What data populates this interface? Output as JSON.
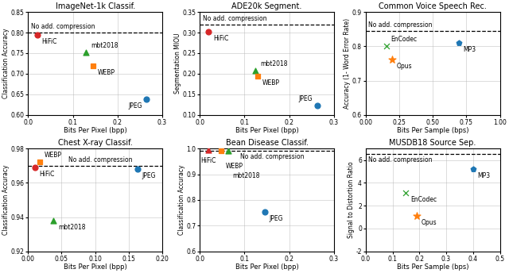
{
  "chart_data": [
    {
      "type": "scatter",
      "title": "ImageNet-1k Classif.",
      "x_label": "Bits Per Pixel (bpp)",
      "y_label": "Classification Accuracy",
      "xlim": [
        0,
        0.3
      ],
      "ylim": [
        0.6,
        0.85
      ],
      "xticks": [
        0.0,
        0.1,
        0.2,
        0.3
      ],
      "yticks": [
        {
          "value": 0.6,
          "label": "0.60"
        },
        {
          "value": 0.65,
          "label": "0.65"
        },
        {
          "value": 0.7,
          "label": "0.70"
        },
        {
          "value": 0.75,
          "label": "0.75"
        },
        {
          "value": 0.8,
          "label": "0.80"
        },
        {
          "value": 0.85,
          "label": "0.85"
        }
      ],
      "grid": true,
      "reference_line": {
        "value": 0.8,
        "label": "No add. compression",
        "line_style": "dashed"
      },
      "series": [
        {
          "name": "HiFiC",
          "color": "#d62728",
          "marker": "circle",
          "x": [
            0.02
          ],
          "values": [
            0.795
          ]
        },
        {
          "name": "mbt2018",
          "color": "#2ca02c",
          "marker": "triangle",
          "x": [
            0.13
          ],
          "values": [
            0.752
          ]
        },
        {
          "name": "WEBP",
          "color": "#ff7f0e",
          "marker": "square",
          "x": [
            0.145
          ],
          "values": [
            0.72
          ]
        },
        {
          "name": "JPEG",
          "color": "#1f77b4",
          "marker": "circle",
          "x": [
            0.265
          ],
          "values": [
            0.638
          ]
        }
      ]
    },
    {
      "type": "scatter",
      "title": "ADE20k Segment.",
      "x_label": "Bits Per Pixel (bpp)",
      "y_label": "Segmentation MIOU",
      "xlim": [
        0,
        0.3
      ],
      "ylim": [
        0.1,
        0.35
      ],
      "xticks": [
        0.0,
        0.1,
        0.2,
        0.3
      ],
      "yticks": [
        {
          "value": 0.1,
          "label": "0.10"
        },
        {
          "value": 0.15,
          "label": "0.15"
        },
        {
          "value": 0.2,
          "label": "0.20"
        },
        {
          "value": 0.25,
          "label": "0.25"
        },
        {
          "value": 0.3,
          "label": "0.30"
        },
        {
          "value": 0.35,
          "label": "0.35"
        }
      ],
      "grid": true,
      "reference_line": {
        "value": 0.32,
        "label": "No add. compression",
        "line_style": "dashed"
      },
      "series": [
        {
          "name": "HiFiC",
          "color": "#d62728",
          "marker": "circle",
          "x": [
            0.02
          ],
          "values": [
            0.302
          ]
        },
        {
          "name": "mbt2018",
          "color": "#2ca02c",
          "marker": "triangle",
          "x": [
            0.125
          ],
          "values": [
            0.208
          ]
        },
        {
          "name": "WEBP",
          "color": "#ff7f0e",
          "marker": "square",
          "x": [
            0.13
          ],
          "values": [
            0.194
          ]
        },
        {
          "name": "JPEG",
          "color": "#1f77b4",
          "marker": "circle",
          "x": [
            0.262
          ],
          "values": [
            0.122
          ]
        }
      ]
    },
    {
      "type": "scatter",
      "title": "Common Voice Speech Rec.",
      "x_label": "Bits Per Sample (bps)",
      "y_label": "Accuracy (1- Word Error Rate)",
      "xlim": [
        0,
        1.0
      ],
      "ylim": [
        0.6,
        0.9
      ],
      "xticks": [
        {
          "value": 0.0,
          "label": "0.00"
        },
        {
          "value": 0.25,
          "label": "0.25"
        },
        {
          "value": 0.5,
          "label": "0.50"
        },
        {
          "value": 0.75,
          "label": "0.75"
        },
        {
          "value": 1.0,
          "label": "1.00"
        }
      ],
      "yticks": [
        0.6,
        0.7,
        0.8,
        0.9
      ],
      "grid": true,
      "reference_line": {
        "value": 0.845,
        "label": "No add. compression",
        "line_style": "dashed"
      },
      "series": [
        {
          "name": "EnCodec",
          "color": "#2ca02c",
          "marker": "x",
          "x": [
            0.155
          ],
          "values": [
            0.8
          ]
        },
        {
          "name": "Opus",
          "color": "#ff7f0e",
          "marker": "star",
          "x": [
            0.195
          ],
          "values": [
            0.762
          ]
        },
        {
          "name": "MP3",
          "color": "#1f77b4",
          "marker": "pentagon",
          "x": [
            0.695
          ],
          "values": [
            0.81
          ]
        }
      ]
    },
    {
      "type": "scatter",
      "title": "Chest X-ray Classif.",
      "x_label": "Bits Per Pixel (bpp)",
      "y_label": "Classification Accuracy",
      "xlim": [
        0,
        0.2
      ],
      "ylim": [
        0.92,
        0.98
      ],
      "xticks": [
        {
          "value": 0.0,
          "label": "0.00"
        },
        {
          "value": 0.05,
          "label": "0.05"
        },
        {
          "value": 0.1,
          "label": "0.10"
        },
        {
          "value": 0.15,
          "label": "0.15"
        },
        {
          "value": 0.2,
          "label": "0.20"
        }
      ],
      "yticks": [
        0.92,
        0.94,
        0.96,
        0.98
      ],
      "grid": true,
      "reference_line": {
        "value": 0.97,
        "label": "No add. compression",
        "line_style": "dashed"
      },
      "series": [
        {
          "name": "HiFiC",
          "color": "#d62728",
          "marker": "circle",
          "x": [
            0.01
          ],
          "values": [
            0.969
          ]
        },
        {
          "name": "WEBP",
          "color": "#ff7f0e",
          "marker": "square",
          "x": [
            0.018
          ],
          "values": [
            0.972
          ]
        },
        {
          "name": "mbt2018",
          "color": "#2ca02c",
          "marker": "triangle",
          "x": [
            0.038
          ],
          "values": [
            0.938
          ]
        },
        {
          "name": "JPEG",
          "color": "#1f77b4",
          "marker": "circle",
          "x": [
            0.163
          ],
          "values": [
            0.968
          ]
        }
      ]
    },
    {
      "type": "scatter",
      "title": "Bean Disease Classif.",
      "x_label": "Bits Per Pixel (bpp)",
      "y_label": "Classification Accuracy",
      "xlim": [
        0,
        0.3
      ],
      "ylim": [
        0.6,
        1.0
      ],
      "xticks": [
        0.0,
        0.1,
        0.2,
        0.3
      ],
      "yticks": [
        0.6,
        0.7,
        0.8,
        0.9,
        1.0
      ],
      "grid": true,
      "reference_line": {
        "value": 0.99,
        "label": "No add. compression",
        "line_style": "dashed"
      },
      "series": [
        {
          "name": "HiFiC",
          "color": "#d62728",
          "marker": "triangle",
          "x": [
            0.02
          ],
          "values": [
            0.993
          ]
        },
        {
          "name": "WEBP",
          "color": "#ff7f0e",
          "marker": "square",
          "x": [
            0.048
          ],
          "values": [
            0.992
          ]
        },
        {
          "name": "mbt2018",
          "color": "#2ca02c",
          "marker": "triangle",
          "x": [
            0.063
          ],
          "values": [
            0.99
          ]
        },
        {
          "name": "JPEG",
          "color": "#1f77b4",
          "marker": "circle",
          "x": [
            0.145
          ],
          "values": [
            0.755
          ]
        }
      ]
    },
    {
      "type": "scatter",
      "title": "MUSDB18 Source Sep.",
      "x_label": "Bits Per Sample (bps)",
      "y_label": "Signal to Distortion Ratio",
      "xlim": [
        0,
        0.5
      ],
      "ylim": [
        -2,
        7
      ],
      "xticks": [
        0.0,
        0.1,
        0.2,
        0.3,
        0.4,
        0.5
      ],
      "yticks": [
        -2,
        0,
        2,
        4,
        6
      ],
      "grid": true,
      "reference_line": {
        "value": 6.5,
        "label": "No add. compression",
        "line_style": "dashed"
      },
      "series": [
        {
          "name": "EnCodec",
          "color": "#2ca02c",
          "marker": "x",
          "x": [
            0.15
          ],
          "values": [
            3.1
          ]
        },
        {
          "name": "Opus",
          "color": "#ff7f0e",
          "marker": "star",
          "x": [
            0.19
          ],
          "values": [
            1.1
          ]
        },
        {
          "name": "MP3",
          "color": "#1f77b4",
          "marker": "pentagon",
          "x": [
            0.4
          ],
          "values": [
            5.2
          ]
        }
      ]
    }
  ]
}
